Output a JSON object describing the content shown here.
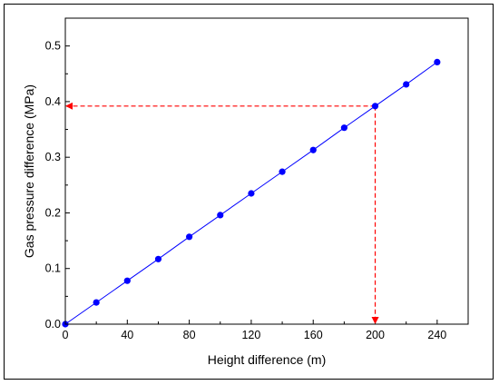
{
  "chart_data": {
    "type": "scatter",
    "xlabel": "Height difference (m)",
    "ylabel": "Gas pressure difference (MPa)",
    "xlim": [
      0,
      260
    ],
    "ylim": [
      0,
      0.55
    ],
    "x_ticks": [
      0,
      40,
      80,
      120,
      160,
      200,
      240
    ],
    "x_tick_labels": [
      "0",
      "40",
      "80",
      "120",
      "160",
      "200",
      "240"
    ],
    "y_ticks": [
      0.0,
      0.1,
      0.2,
      0.3,
      0.4,
      0.5
    ],
    "y_tick_labels": [
      "0.0",
      "0.1",
      "0.2",
      "0.3",
      "0.4",
      "0.5"
    ],
    "grid": false,
    "series": [
      {
        "x": [
          0,
          20,
          40,
          60,
          80,
          100,
          120,
          140,
          160,
          180,
          200,
          220,
          240
        ],
        "y": [
          0.0,
          0.039,
          0.078,
          0.117,
          0.157,
          0.196,
          0.235,
          0.274,
          0.313,
          0.353,
          0.392,
          0.431,
          0.471
        ],
        "color": "#0000ff",
        "line": true,
        "markers": true
      }
    ],
    "annotations": [
      {
        "type": "dashed-arrow-to-axis",
        "x": 200,
        "y": 0.392,
        "color": "#ff0000"
      }
    ]
  }
}
